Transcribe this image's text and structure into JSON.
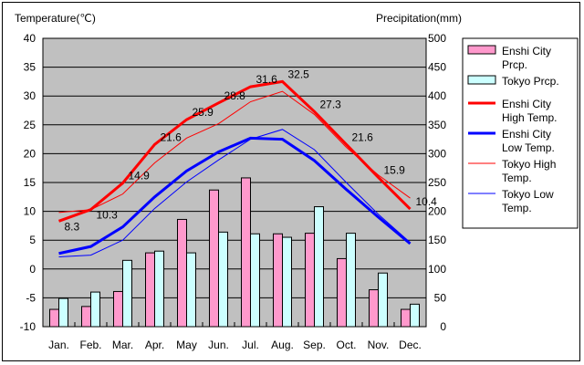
{
  "chart_data": {
    "type": "bar+line",
    "categories": [
      "Jan.",
      "Feb.",
      "Mar.",
      "Apr.",
      "May",
      "Jun.",
      "Jul.",
      "Aug.",
      "Sep.",
      "Oct.",
      "Nov.",
      "Dec."
    ],
    "ylabel_left": "Temperature(℃)",
    "ylabel_right": "Precipitation(mm)",
    "ylim_left": [
      -10,
      40
    ],
    "ylim_right": [
      0,
      500
    ],
    "yticks_left": [
      "40",
      "35",
      "30",
      "25",
      "20",
      "15",
      "10",
      "5",
      "0",
      "-5",
      "-10"
    ],
    "yticks_right": [
      "500",
      "450",
      "400",
      "350",
      "300",
      "250",
      "200",
      "150",
      "100",
      "50",
      "0"
    ],
    "bars": [
      {
        "name": "Enshi City Prcp.",
        "color": "#ff99cc",
        "values": [
          30,
          35,
          61,
          128,
          186,
          237,
          258,
          161,
          162,
          118,
          64,
          30
        ]
      },
      {
        "name": "Tokyo Prcp.",
        "color": "#ccffff",
        "values": [
          49,
          60,
          115,
          131,
          128,
          164,
          161,
          155,
          208,
          162,
          93,
          39
        ]
      }
    ],
    "lines": [
      {
        "name": "Enshi City High Temp.",
        "color": "#ff0000",
        "width": 3,
        "values": [
          8.3,
          10.3,
          14.9,
          21.6,
          25.9,
          28.8,
          31.6,
          32.5,
          27.3,
          21.6,
          15.9,
          10.4
        ],
        "labels": [
          "8.3",
          "10.3",
          "14.9",
          "21.6",
          "25.9",
          "28.8",
          "31.6",
          "32.5",
          "27.3",
          "21.6",
          "15.9",
          "10.4"
        ]
      },
      {
        "name": "Enshi City Low Temp.",
        "color": "#0000ff",
        "width": 3,
        "values": [
          2.7,
          3.9,
          7.3,
          12.5,
          17.0,
          20.3,
          22.7,
          22.5,
          18.8,
          13.8,
          9.0,
          4.4
        ]
      },
      {
        "name": "Tokyo High Temp.",
        "color": "#ff0000",
        "width": 1,
        "values": [
          9.8,
          10.3,
          13.0,
          18.4,
          22.7,
          25.2,
          29.0,
          30.8,
          26.8,
          21.1,
          16.3,
          12.3
        ]
      },
      {
        "name": "Tokyo Low Temp.",
        "color": "#0000ff",
        "width": 1,
        "values": [
          2.1,
          2.4,
          5.0,
          10.5,
          15.1,
          18.9,
          22.5,
          24.2,
          20.7,
          15.0,
          9.5,
          4.6
        ]
      }
    ],
    "legend": {
      "placement": "right",
      "items": [
        {
          "lines": [
            "Enshi City",
            "Prcp."
          ],
          "kind": "bar",
          "color": "#ff99cc"
        },
        {
          "lines": [
            "Tokyo Prcp."
          ],
          "kind": "bar",
          "color": "#ccffff"
        },
        {
          "lines": [
            "Enshi City",
            "High Temp."
          ],
          "kind": "line",
          "color": "#ff0000",
          "width": 3
        },
        {
          "lines": [
            "Enshi City",
            "Low Temp."
          ],
          "kind": "line",
          "color": "#0000ff",
          "width": 3
        },
        {
          "lines": [
            "Tokyo High",
            "Temp."
          ],
          "kind": "line",
          "color": "#ff0000",
          "width": 1
        },
        {
          "lines": [
            "Tokyo Low",
            "Temp."
          ],
          "kind": "line",
          "color": "#0000ff",
          "width": 1
        }
      ]
    },
    "grid": true
  }
}
